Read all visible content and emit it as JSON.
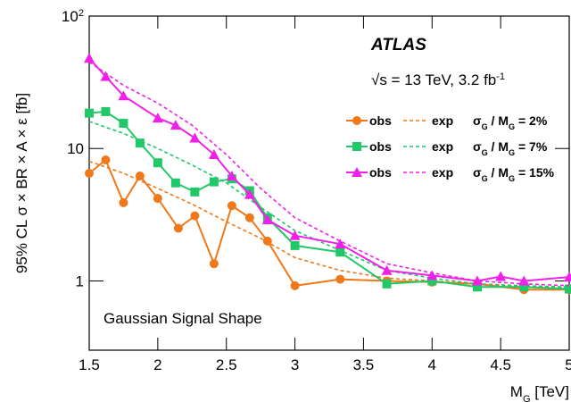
{
  "chart_data": {
    "type": "line",
    "log_y": true,
    "y_label": "95% CL σ × BR × A × ε [fb]",
    "x_label": "M_G [TeV]",
    "xlim": [
      1.5,
      5
    ],
    "xticks": [
      1.5,
      2,
      2.5,
      3,
      3.5,
      4,
      4.5,
      5
    ],
    "ylim": [
      0.3,
      100
    ],
    "yticks": [
      {
        "value": 1,
        "label": "1"
      },
      {
        "value": 10,
        "label": "10"
      },
      {
        "value": 100,
        "label": "10^2"
      }
    ],
    "annotations": [
      "ATLAS",
      "√s = 13 TeV, 3.2 fb^-1",
      "Gaussian Signal Shape"
    ],
    "legend_groups": [
      "σ_G / M_G = 2%",
      "σ_G / M_G = 7%",
      "σ_G / M_G = 15%"
    ],
    "series": [
      {
        "name": "obs",
        "color": "#f07818",
        "marker": "circle",
        "linestyle": "solid",
        "x": [
          1.5,
          1.62,
          1.75,
          1.87,
          2.0,
          2.15,
          2.27,
          2.41,
          2.54,
          2.67,
          2.8,
          3.0,
          3.33,
          3.67,
          4.0,
          4.33,
          4.67,
          5.0
        ],
        "values": [
          6.5,
          8.2,
          3.9,
          6.2,
          4.2,
          2.5,
          3.1,
          1.35,
          3.7,
          3.0,
          2.0,
          0.92,
          1.03,
          1.0,
          0.98,
          0.95,
          0.86,
          0.86
        ]
      },
      {
        "name": "exp",
        "color": "#f07818",
        "marker": "none",
        "linestyle": "dashed",
        "x": [
          1.5,
          1.75,
          2.0,
          2.25,
          2.5,
          2.75,
          3.0,
          3.33,
          3.67,
          4.0,
          4.33,
          4.67,
          5.0
        ],
        "values": [
          8,
          6.5,
          5,
          3.8,
          2.8,
          2.1,
          1.5,
          1.2,
          1.05,
          1.0,
          0.95,
          0.9,
          0.88
        ]
      },
      {
        "name": "obs",
        "color": "#20c868",
        "marker": "square",
        "linestyle": "solid",
        "x": [
          1.5,
          1.62,
          1.75,
          1.87,
          2.0,
          2.13,
          2.27,
          2.41,
          2.54,
          2.67,
          2.8,
          3.0,
          3.33,
          3.67,
          4.0,
          4.33,
          4.67,
          5.0
        ],
        "values": [
          18.5,
          19,
          15.5,
          11,
          7.8,
          5.5,
          4.7,
          5.6,
          5.9,
          4.8,
          3.0,
          1.85,
          1.65,
          0.95,
          1.0,
          0.9,
          0.9,
          0.87
        ]
      },
      {
        "name": "exp",
        "color": "#20c868",
        "marker": "none",
        "linestyle": "dashed",
        "x": [
          1.5,
          1.75,
          2.0,
          2.25,
          2.5,
          2.75,
          3.0,
          3.33,
          3.67,
          4.0,
          4.33,
          4.67,
          5.0
        ],
        "values": [
          16,
          13,
          10,
          7.5,
          5.5,
          3.6,
          2.4,
          1.7,
          1.2,
          1.05,
          0.95,
          0.92,
          0.9
        ]
      },
      {
        "name": "obs",
        "color": "#f020e8",
        "marker": "triangle",
        "linestyle": "solid",
        "x": [
          1.5,
          1.62,
          1.75,
          2.0,
          2.13,
          2.27,
          2.41,
          2.54,
          2.67,
          2.8,
          3.0,
          3.33,
          3.67,
          4.0,
          4.33,
          4.5,
          4.67,
          5.0
        ],
        "values": [
          48,
          35,
          25,
          17,
          15,
          12,
          9,
          6.2,
          4.5,
          2.9,
          2.2,
          1.9,
          1.2,
          1.1,
          1.0,
          1.08,
          1.0,
          1.07
        ]
      },
      {
        "name": "exp",
        "color": "#f020e8",
        "marker": "none",
        "linestyle": "dashed",
        "x": [
          1.5,
          1.75,
          2.0,
          2.25,
          2.5,
          2.75,
          3.0,
          3.33,
          3.67,
          4.0,
          4.33,
          4.67,
          5.0
        ],
        "values": [
          45,
          30,
          22,
          15,
          9,
          5,
          3,
          2.0,
          1.35,
          1.15,
          1.0,
          0.95,
          0.92
        ]
      }
    ]
  }
}
